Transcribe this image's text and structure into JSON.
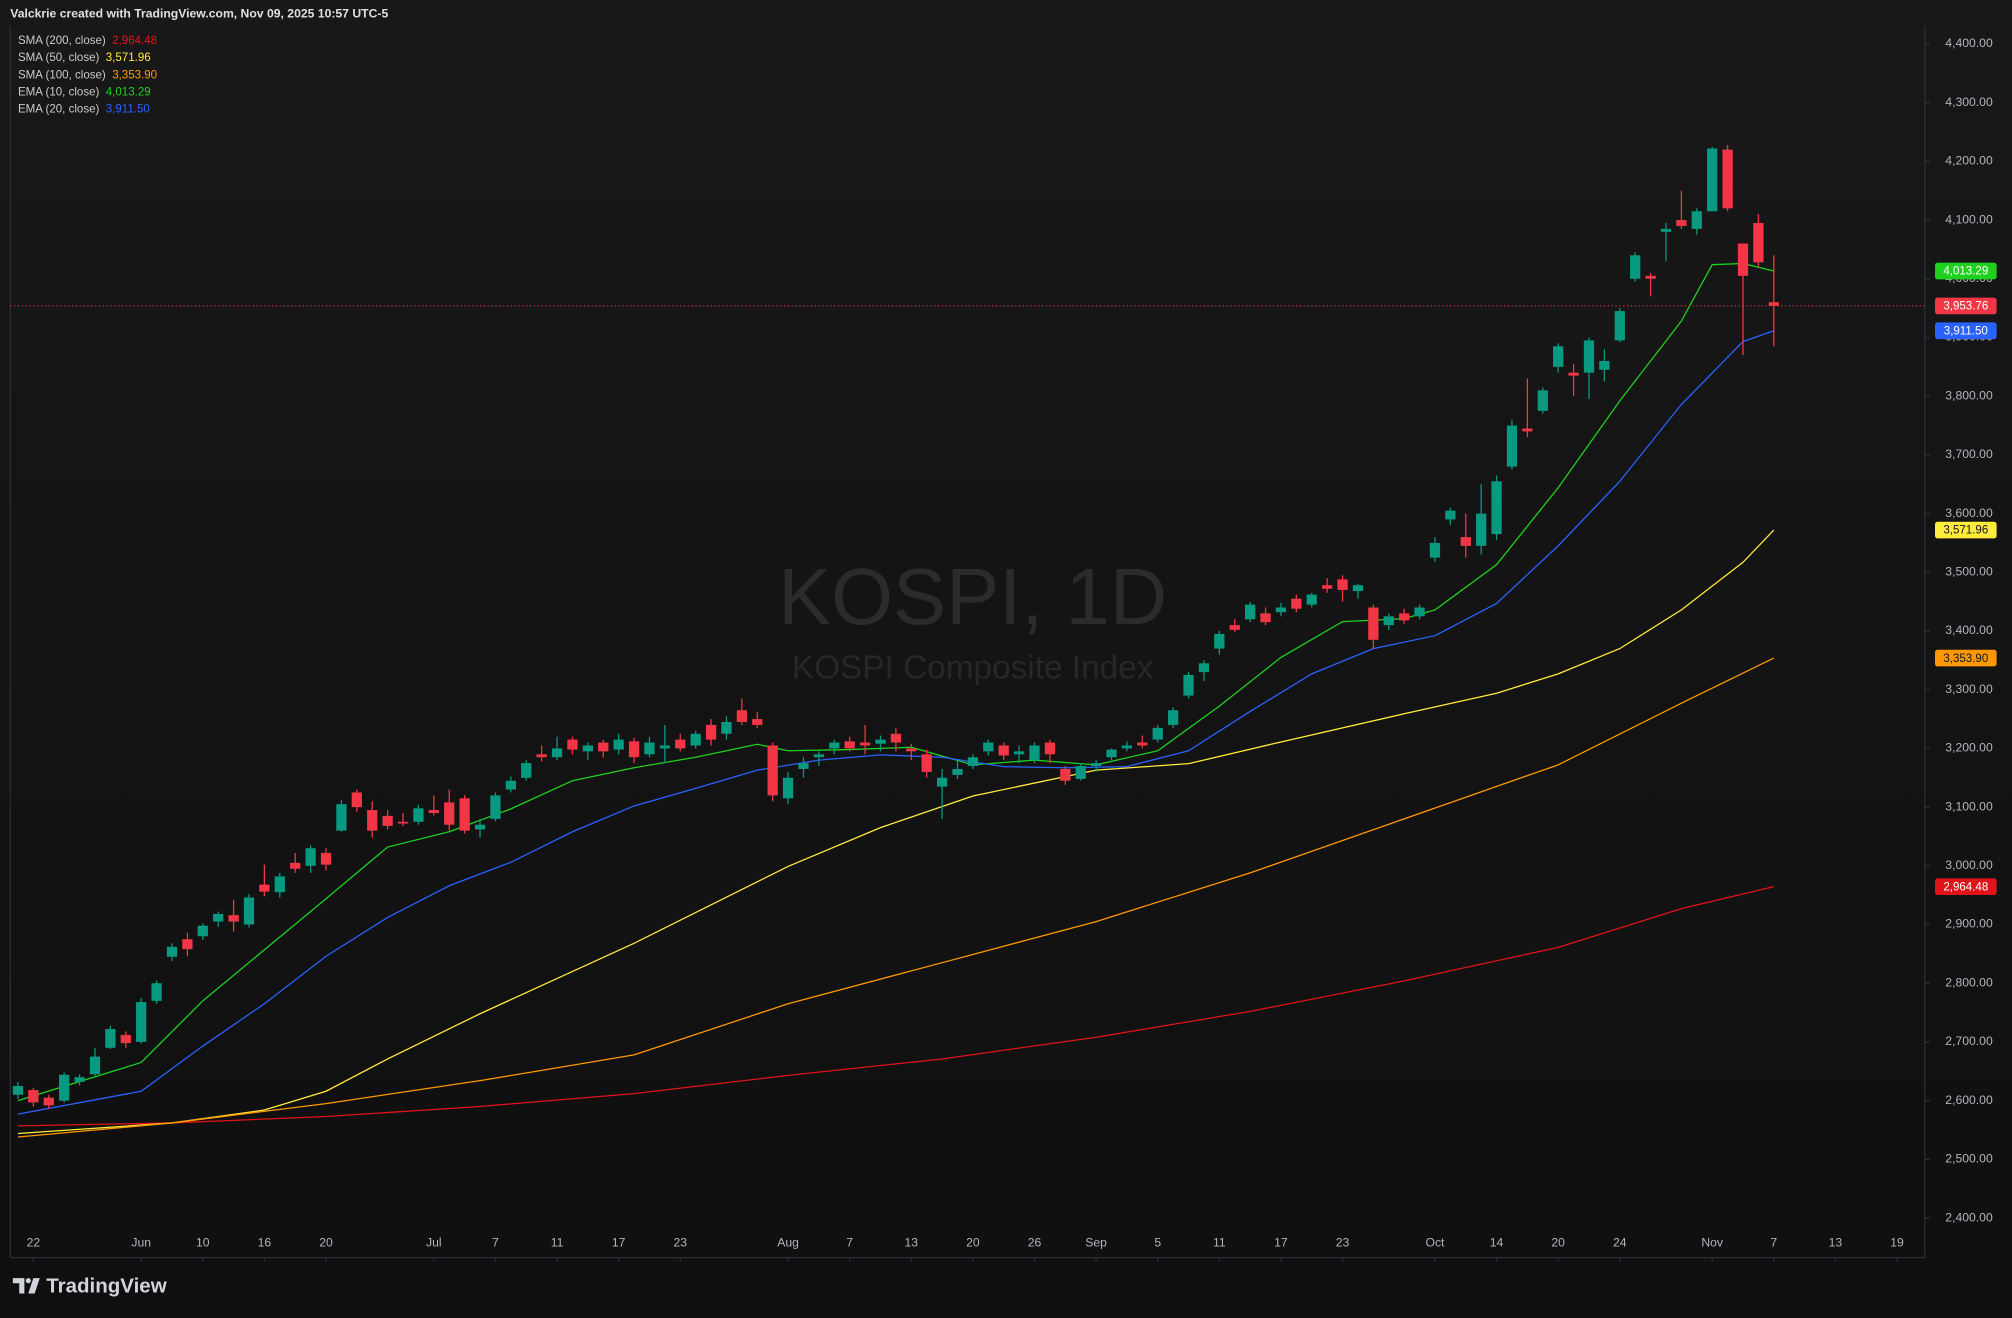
{
  "chart_data": {
    "type": "candlestick",
    "header": "Valckrie created with TradingView.com, Nov 09, 2025 10:57 UTC-5",
    "watermark_title": "KOSPI, 1D",
    "watermark_subtitle": "KOSPI Composite Index",
    "brand": "TradingView",
    "xlim": [
      -0.5,
      123.8
    ],
    "ylim": [
      2337,
      4431
    ],
    "grid": false,
    "last_price_line": true,
    "yticks": [
      {
        "value": 2400,
        "label": "2,400.00"
      },
      {
        "value": 2500,
        "label": "2,500.00"
      },
      {
        "value": 2600,
        "label": "2,600.00"
      },
      {
        "value": 2700,
        "label": "2,700.00"
      },
      {
        "value": 2800,
        "label": "2,800.00"
      },
      {
        "value": 2900,
        "label": "2,900.00"
      },
      {
        "value": 3000,
        "label": "3,000.00"
      },
      {
        "value": 3100,
        "label": "3,100.00"
      },
      {
        "value": 3200,
        "label": "3,200.00"
      },
      {
        "value": 3300,
        "label": "3,300.00"
      },
      {
        "value": 3400,
        "label": "3,400.00"
      },
      {
        "value": 3500,
        "label": "3,500.00"
      },
      {
        "value": 3600,
        "label": "3,600.00"
      },
      {
        "value": 3700,
        "label": "3,700.00"
      },
      {
        "value": 3800,
        "label": "3,800.00"
      },
      {
        "value": 3900,
        "label": "3,900.00"
      },
      {
        "value": 4000,
        "label": "4,000.00"
      },
      {
        "value": 4100,
        "label": "4,100.00"
      },
      {
        "value": 4200,
        "label": "4,200.00"
      },
      {
        "value": 4300,
        "label": "4,300.00"
      },
      {
        "value": 4400,
        "label": "4,400.00"
      }
    ],
    "xticks": [
      {
        "value": 1,
        "label": "22"
      },
      {
        "value": 8,
        "label": "Jun"
      },
      {
        "value": 12,
        "label": "10"
      },
      {
        "value": 16,
        "label": "16"
      },
      {
        "value": 20,
        "label": "20"
      },
      {
        "value": 27,
        "label": "Jul"
      },
      {
        "value": 31,
        "label": "7"
      },
      {
        "value": 35,
        "label": "11"
      },
      {
        "value": 39,
        "label": "17"
      },
      {
        "value": 43,
        "label": "23"
      },
      {
        "value": 50,
        "label": "Aug"
      },
      {
        "value": 54,
        "label": "7"
      },
      {
        "value": 58,
        "label": "13"
      },
      {
        "value": 62,
        "label": "20"
      },
      {
        "value": 66,
        "label": "26"
      },
      {
        "value": 70,
        "label": "Sep"
      },
      {
        "value": 74,
        "label": "5"
      },
      {
        "value": 78,
        "label": "11"
      },
      {
        "value": 82,
        "label": "17"
      },
      {
        "value": 86,
        "label": "23"
      },
      {
        "value": 92,
        "label": "Oct"
      },
      {
        "value": 96,
        "label": "14"
      },
      {
        "value": 100,
        "label": "20"
      },
      {
        "value": 104,
        "label": "24"
      },
      {
        "value": 110,
        "label": "Nov"
      },
      {
        "value": 114,
        "label": "7"
      },
      {
        "value": 118,
        "label": "13"
      },
      {
        "value": 122,
        "label": "19"
      }
    ],
    "candles": {
      "up_color": "#089981",
      "down_color": "#f23645",
      "last_label": "3,953.76",
      "ohlc": [
        [
          2610,
          2632,
          2603,
          2625
        ],
        [
          2618,
          2622,
          2590,
          2597
        ],
        [
          2605,
          2610,
          2586,
          2592
        ],
        [
          2600,
          2648,
          2597,
          2644
        ],
        [
          2632,
          2645,
          2626,
          2640
        ],
        [
          2645,
          2690,
          2642,
          2675
        ],
        [
          2690,
          2728,
          2688,
          2722
        ],
        [
          2712,
          2718,
          2690,
          2698
        ],
        [
          2700,
          2775,
          2697,
          2768
        ],
        [
          2770,
          2805,
          2765,
          2800
        ],
        [
          2845,
          2868,
          2838,
          2862
        ],
        [
          2875,
          2886,
          2846,
          2858
        ],
        [
          2880,
          2902,
          2874,
          2898
        ],
        [
          2905,
          2922,
          2896,
          2918
        ],
        [
          2916,
          2942,
          2888,
          2905
        ],
        [
          2900,
          2952,
          2895,
          2946
        ],
        [
          2968,
          3002,
          2948,
          2956
        ],
        [
          2955,
          2988,
          2946,
          2982
        ],
        [
          3005,
          3022,
          2988,
          2995
        ],
        [
          3000,
          3035,
          2988,
          3030
        ],
        [
          3022,
          3030,
          2992,
          3002
        ],
        [
          3060,
          3112,
          3058,
          3105
        ],
        [
          3125,
          3130,
          3092,
          3100
        ],
        [
          3095,
          3110,
          3048,
          3060
        ],
        [
          3085,
          3095,
          3062,
          3068
        ],
        [
          3075,
          3090,
          3068,
          3072
        ],
        [
          3075,
          3104,
          3070,
          3098
        ],
        [
          3095,
          3120,
          3086,
          3090
        ],
        [
          3108,
          3130,
          3060,
          3070
        ],
        [
          3115,
          3120,
          3055,
          3060
        ],
        [
          3062,
          3080,
          3048,
          3070
        ],
        [
          3080,
          3125,
          3076,
          3120
        ],
        [
          3130,
          3152,
          3125,
          3145
        ],
        [
          3150,
          3180,
          3145,
          3175
        ],
        [
          3190,
          3205,
          3178,
          3185
        ],
        [
          3185,
          3220,
          3180,
          3200
        ],
        [
          3215,
          3220,
          3190,
          3198
        ],
        [
          3195,
          3210,
          3180,
          3205
        ],
        [
          3210,
          3215,
          3185,
          3195
        ],
        [
          3198,
          3225,
          3190,
          3215
        ],
        [
          3212,
          3218,
          3175,
          3185
        ],
        [
          3190,
          3220,
          3185,
          3210
        ],
        [
          3200,
          3240,
          3175,
          3205
        ],
        [
          3215,
          3225,
          3195,
          3200
        ],
        [
          3205,
          3230,
          3200,
          3225
        ],
        [
          3240,
          3250,
          3205,
          3215
        ],
        [
          3225,
          3255,
          3215,
          3245
        ],
        [
          3265,
          3285,
          3240,
          3245
        ],
        [
          3250,
          3262,
          3235,
          3240
        ],
        [
          3205,
          3210,
          3110,
          3120
        ],
        [
          3115,
          3160,
          3105,
          3150
        ],
        [
          3165,
          3185,
          3150,
          3175
        ],
        [
          3185,
          3195,
          3170,
          3190
        ],
        [
          3200,
          3215,
          3190,
          3210
        ],
        [
          3212,
          3220,
          3195,
          3200
        ],
        [
          3210,
          3240,
          3190,
          3205
        ],
        [
          3208,
          3222,
          3195,
          3215
        ],
        [
          3225,
          3235,
          3195,
          3210
        ],
        [
          3200,
          3208,
          3180,
          3195
        ],
        [
          3190,
          3198,
          3150,
          3160
        ],
        [
          3135,
          3165,
          3080,
          3150
        ],
        [
          3155,
          3180,
          3148,
          3165
        ],
        [
          3170,
          3190,
          3165,
          3185
        ],
        [
          3195,
          3215,
          3188,
          3210
        ],
        [
          3205,
          3210,
          3180,
          3188
        ],
        [
          3190,
          3205,
          3175,
          3195
        ],
        [
          3180,
          3210,
          3175,
          3205
        ],
        [
          3210,
          3215,
          3175,
          3190
        ],
        [
          3165,
          3170,
          3138,
          3145
        ],
        [
          3148,
          3175,
          3145,
          3170
        ],
        [
          3170,
          3180,
          3160,
          3175
        ],
        [
          3185,
          3200,
          3180,
          3198
        ],
        [
          3200,
          3212,
          3195,
          3205
        ],
        [
          3210,
          3222,
          3200,
          3205
        ],
        [
          3215,
          3240,
          3210,
          3235
        ],
        [
          3240,
          3270,
          3235,
          3265
        ],
        [
          3290,
          3330,
          3285,
          3325
        ],
        [
          3330,
          3350,
          3315,
          3345
        ],
        [
          3370,
          3400,
          3360,
          3395
        ],
        [
          3410,
          3420,
          3398,
          3402
        ],
        [
          3420,
          3450,
          3415,
          3445
        ],
        [
          3430,
          3440,
          3410,
          3415
        ],
        [
          3432,
          3448,
          3425,
          3440
        ],
        [
          3455,
          3462,
          3432,
          3438
        ],
        [
          3445,
          3465,
          3440,
          3462
        ],
        [
          3478,
          3490,
          3465,
          3472
        ],
        [
          3488,
          3495,
          3450,
          3470
        ],
        [
          3468,
          3480,
          3455,
          3478
        ],
        [
          3440,
          3445,
          3370,
          3385
        ],
        [
          3410,
          3430,
          3402,
          3425
        ],
        [
          3430,
          3438,
          3412,
          3418
        ],
        [
          3425,
          3445,
          3420,
          3440
        ],
        [
          3525,
          3560,
          3518,
          3550
        ],
        [
          3590,
          3610,
          3580,
          3605
        ],
        [
          3560,
          3600,
          3525,
          3545
        ],
        [
          3545,
          3650,
          3530,
          3600
        ],
        [
          3565,
          3665,
          3555,
          3655
        ],
        [
          3680,
          3760,
          3675,
          3750
        ],
        [
          3745,
          3830,
          3730,
          3740
        ],
        [
          3775,
          3815,
          3770,
          3810
        ],
        [
          3850,
          3890,
          3840,
          3885
        ],
        [
          3840,
          3855,
          3800,
          3835
        ],
        [
          3840,
          3900,
          3795,
          3895
        ],
        [
          3845,
          3880,
          3825,
          3860
        ],
        [
          3895,
          3950,
          3892,
          3945
        ],
        [
          4000,
          4045,
          3995,
          4040
        ],
        [
          4005,
          4010,
          3970,
          4000
        ],
        [
          4080,
          4095,
          4030,
          4085
        ],
        [
          4100,
          4150,
          4085,
          4090
        ],
        [
          4085,
          4120,
          4075,
          4115
        ],
        [
          4115,
          4225,
          4115,
          4222
        ],
        [
          4220,
          4228,
          4115,
          4120
        ],
        [
          4060,
          4060,
          3870,
          4005
        ],
        [
          4095,
          4110,
          4020,
          4028
        ],
        [
          3960,
          4040,
          3885,
          3953.76
        ]
      ]
    },
    "series": [
      {
        "name": "SMA (200, close)",
        "color": "#e0131a",
        "last_label": "2,964.48",
        "x": [
          0,
          10,
          20,
          30,
          40,
          50,
          60,
          70,
          80,
          90,
          100,
          108,
          114
        ],
        "values": [
          2557,
          2562,
          2573,
          2590,
          2612,
          2643,
          2671,
          2708,
          2752,
          2804,
          2861,
          2927,
          2964.48
        ]
      },
      {
        "name": "SMA (50, close)",
        "color": "#ffeb3b",
        "last_label": "3,571.96",
        "x": [
          0,
          10,
          16,
          20,
          24,
          30,
          40,
          50,
          56,
          62,
          70,
          76,
          82,
          90,
          96,
          100,
          104,
          108,
          112,
          114
        ],
        "values": [
          2544,
          2562,
          2584,
          2616,
          2671,
          2748,
          2868,
          2999,
          3065,
          3119,
          3163,
          3174,
          3211,
          3259,
          3294,
          3327,
          3370,
          3436,
          3517,
          3571.96
        ]
      },
      {
        "name": "SMA (100, close)",
        "color": "#ff9800",
        "last_label": "3,353.90",
        "x": [
          0,
          10,
          20,
          30,
          40,
          50,
          60,
          70,
          80,
          90,
          100,
          108,
          114
        ],
        "values": [
          2538,
          2562,
          2595,
          2634,
          2678,
          2765,
          2835,
          2905,
          2988,
          3080,
          3172,
          3277,
          3353.9
        ]
      },
      {
        "name": "EMA (10, close)",
        "color": "#1fd11f",
        "last_label": "4,013.29",
        "x": [
          0,
          8,
          12,
          16,
          20,
          24,
          28,
          32,
          36,
          40,
          44,
          48,
          50,
          54,
          58,
          62,
          66,
          70,
          74,
          78,
          82,
          86,
          90,
          92,
          96,
          100,
          104,
          108,
          110,
          112,
          114
        ],
        "values": [
          2600,
          2665,
          2770,
          2857,
          2944,
          3032,
          3058,
          3097,
          3145,
          3167,
          3185,
          3207,
          3196,
          3198,
          3202,
          3172,
          3180,
          3172,
          3196,
          3272,
          3355,
          3416,
          3421,
          3436,
          3513,
          3644,
          3792,
          3928,
          4024,
          4026,
          4013.29
        ]
      },
      {
        "name": "EMA (20, close)",
        "color": "#2962ff",
        "last_label": "3,911.50",
        "x": [
          0,
          8,
          12,
          16,
          20,
          24,
          28,
          32,
          36,
          40,
          44,
          48,
          52,
          56,
          60,
          64,
          68,
          72,
          76,
          80,
          84,
          88,
          92,
          96,
          100,
          104,
          108,
          112,
          114
        ],
        "values": [
          2577,
          2616,
          2693,
          2765,
          2846,
          2912,
          2966,
          3006,
          3058,
          3102,
          3132,
          3163,
          3180,
          3189,
          3185,
          3169,
          3167,
          3169,
          3196,
          3263,
          3327,
          3370,
          3392,
          3447,
          3545,
          3655,
          3786,
          3893,
          3911.5
        ]
      }
    ]
  }
}
